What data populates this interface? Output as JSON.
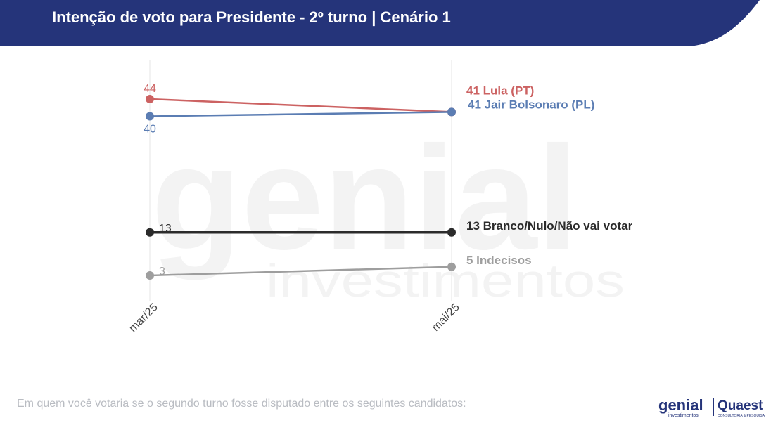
{
  "header": {
    "title": "Intenção de voto para Presidente - 2º turno | Cenário 1"
  },
  "footer": {
    "question": "Em quem você votaria se o segundo turno fosse disputado entre os seguintes candidatos:",
    "logo_genial": "genial",
    "logo_genial_sub": "investimentos",
    "logo_quaest": "Quaest",
    "logo_quaest_sub": "CONSULTORIA & PESQUISA"
  },
  "watermark": {
    "line1": "genial",
    "line2": "investimentos"
  },
  "colors": {
    "header_bg": "#25347a",
    "lula": "#cc6262",
    "bolsonaro": "#5b7db3",
    "branco": "#2b2b2b",
    "indecisos": "#9e9e9e"
  },
  "chart_data": {
    "type": "line",
    "categories": [
      "mar/25",
      "mai/25"
    ],
    "ylim": [
      0,
      50
    ],
    "grid": "vertical",
    "series": [
      {
        "name": "Lula (PT)",
        "values": [
          44,
          41
        ],
        "color": "#cc6262",
        "start_label_pos": "above",
        "end_label": "41 Lula (PT)"
      },
      {
        "name": "Jair Bolsonaro (PL)",
        "values": [
          40,
          41
        ],
        "color": "#5b7db3",
        "start_label_pos": "below",
        "end_label": "41 Jair Bolsonaro (PL)"
      },
      {
        "name": "Branco/Nulo/Não vai votar",
        "values": [
          13,
          13
        ],
        "color": "#2b2b2b",
        "start_label_pos": "right",
        "end_label": "13 Branco/Nulo/Não vai votar"
      },
      {
        "name": "Indecisos",
        "values": [
          3,
          5
        ],
        "color": "#9e9e9e",
        "start_label_pos": "right",
        "end_label": "5 Indecisos"
      }
    ]
  }
}
